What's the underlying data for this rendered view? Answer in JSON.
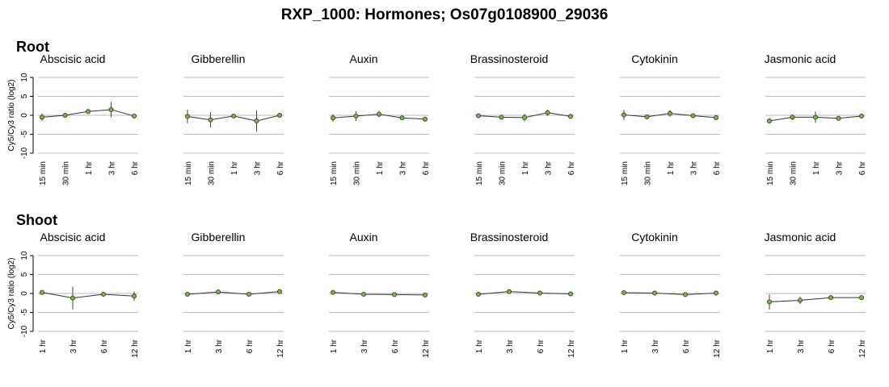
{
  "title": "RXP_1000: Hormones; Os07g0108900_29036",
  "colors": {
    "gridline": "#bbbbbb",
    "line": "#333333",
    "point_fill": "#7cb342",
    "point_stroke": "#333333",
    "errorbar": "#444444"
  },
  "chart_data": [
    {
      "section": "Root",
      "ylabel": "Cy5/Cy3 ratio (log2)",
      "ylim": [
        -10,
        10
      ],
      "yticks": [
        10,
        5,
        0,
        -5,
        -10
      ],
      "type": "line",
      "panels": [
        {
          "title": "Abscisic acid",
          "categories": [
            "15 min",
            "30 min",
            "1 hr",
            "3 hr",
            "6 hr"
          ],
          "values": [
            -0.5,
            0.0,
            1.0,
            1.5,
            -0.2
          ],
          "errors": [
            1.0,
            0.3,
            0.4,
            2.0,
            0.5
          ]
        },
        {
          "title": "Gibberellin",
          "categories": [
            "15 min",
            "30 min",
            "1 hr",
            "3 hr",
            "6 hr"
          ],
          "values": [
            -0.3,
            -1.2,
            -0.2,
            -1.5,
            0.0
          ],
          "errors": [
            1.8,
            2.0,
            0.4,
            2.8,
            0.4
          ]
        },
        {
          "title": "Auxin",
          "categories": [
            "15 min",
            "30 min",
            "1 hr",
            "3 hr",
            "6 hr"
          ],
          "values": [
            -0.7,
            -0.2,
            0.3,
            -0.7,
            -1.0
          ],
          "errors": [
            1.0,
            1.3,
            0.8,
            0.5,
            0.4
          ]
        },
        {
          "title": "Brassinosteroid",
          "categories": [
            "15 min",
            "30 min",
            "1 hr",
            "3 hr",
            "6 hr"
          ],
          "values": [
            -0.1,
            -0.5,
            -0.6,
            0.7,
            -0.3
          ],
          "errors": [
            0.4,
            0.4,
            1.0,
            0.8,
            0.4
          ]
        },
        {
          "title": "Cytokinin",
          "categories": [
            "15 min",
            "30 min",
            "1 hr",
            "3 hr",
            "6 hr"
          ],
          "values": [
            0.1,
            -0.4,
            0.5,
            -0.1,
            -0.6
          ],
          "errors": [
            1.3,
            0.3,
            0.9,
            0.4,
            0.4
          ]
        },
        {
          "title": "Jasmonic acid",
          "categories": [
            "15 min",
            "30 min",
            "1 hr",
            "3 hr",
            "6 hr"
          ],
          "values": [
            -1.5,
            -0.5,
            -0.5,
            -0.8,
            -0.2
          ],
          "errors": [
            0.3,
            0.7,
            1.5,
            0.5,
            0.4
          ]
        }
      ]
    },
    {
      "section": "Shoot",
      "ylabel": "Cy5/Cy3 ratio (log2)",
      "ylim": [
        -10,
        10
      ],
      "yticks": [
        10,
        5,
        0,
        -5,
        -10
      ],
      "type": "line",
      "panels": [
        {
          "title": "Abscisic acid",
          "categories": [
            "1 hr",
            "3 hr",
            "6 hr",
            "12 hr"
          ],
          "values": [
            0.3,
            -1.2,
            -0.2,
            -0.7
          ],
          "errors": [
            0.3,
            3.0,
            0.3,
            1.2
          ]
        },
        {
          "title": "Gibberellin",
          "categories": [
            "1 hr",
            "3 hr",
            "6 hr",
            "12 hr"
          ],
          "values": [
            -0.2,
            0.4,
            -0.2,
            0.5
          ],
          "errors": [
            0.3,
            0.3,
            0.3,
            0.3
          ]
        },
        {
          "title": "Auxin",
          "categories": [
            "1 hr",
            "3 hr",
            "6 hr",
            "12 hr"
          ],
          "values": [
            0.3,
            -0.2,
            -0.3,
            -0.4
          ],
          "errors": [
            0.3,
            0.3,
            0.3,
            0.3
          ]
        },
        {
          "title": "Brassinosteroid",
          "categories": [
            "1 hr",
            "3 hr",
            "6 hr",
            "12 hr"
          ],
          "values": [
            -0.2,
            0.5,
            0.1,
            -0.1
          ],
          "errors": [
            0.3,
            0.3,
            0.3,
            0.3
          ]
        },
        {
          "title": "Cytokinin",
          "categories": [
            "1 hr",
            "3 hr",
            "6 hr",
            "12 hr"
          ],
          "values": [
            0.2,
            0.1,
            -0.3,
            0.1
          ],
          "errors": [
            0.3,
            0.3,
            0.3,
            0.3
          ]
        },
        {
          "title": "Jasmonic acid",
          "categories": [
            "1 hr",
            "3 hr",
            "6 hr",
            "12 hr"
          ],
          "values": [
            -2.2,
            -1.8,
            -1.1,
            -1.1
          ],
          "errors": [
            2.0,
            1.0,
            0.4,
            0.3
          ]
        }
      ]
    }
  ]
}
